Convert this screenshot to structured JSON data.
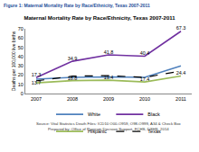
{
  "chart_data": {
    "type": "line",
    "header": "Figure 1: Maternal Mortality Rate by Race/Ethnicity, Texas 2007-2011",
    "title": "Maternal Mortality Rate by Race/Ethnicity, Texas 2007-2011",
    "y_label": "Deaths per 100,000 live births",
    "notes": [
      "Source: Vital Statistics Death Files: ICD10 O00-O959, O98-O999, A34 & Check Box",
      "Prepared by: Office of Program Decision Support, FCHS, DSHS, 2014"
    ],
    "categories": [
      "2007",
      "2008",
      "2009",
      "2010",
      "2011"
    ],
    "series": [
      {
        "name": "White",
        "color": "#4f81bd",
        "line_style": "solid",
        "values": [
          15.5,
          17.5,
          18,
          17.5,
          30
        ]
      },
      {
        "name": "Black",
        "color": "#7030a0",
        "line_style": "solid",
        "data_labels": true,
        "values": [
          17.3,
          34.9,
          41.8,
          40.4,
          67.3
        ]
      },
      {
        "name": "Hispanic",
        "color": "#9bbb59",
        "line_style": "solid",
        "values": [
          11.5,
          14,
          14.5,
          12.5,
          19
        ]
      },
      {
        "name": "Texas",
        "color": "#000000",
        "line_style": "dash",
        "data_labels": true,
        "values": [
          13.7,
          18.8,
          19.4,
          17.4,
          24.4
        ]
      }
    ],
    "ylim": [
      0,
      70
    ],
    "yticks": [
      0,
      10,
      20,
      30,
      40,
      50,
      60,
      70
    ],
    "grid": false,
    "legend": "bottom"
  }
}
